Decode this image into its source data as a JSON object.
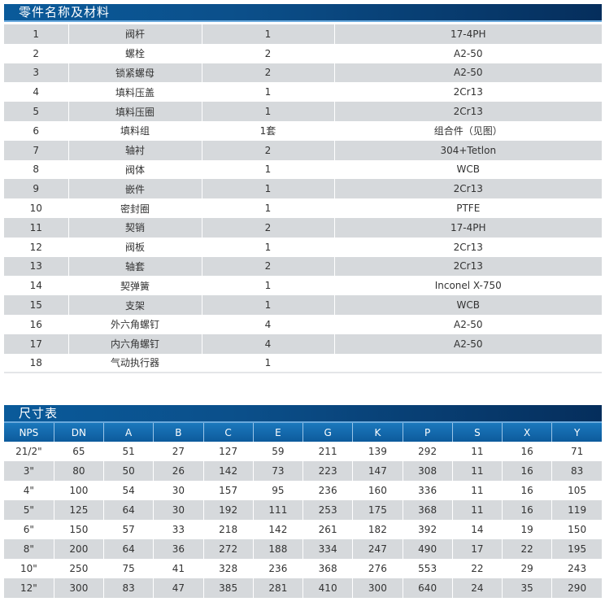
{
  "parts_section": {
    "title": "零件名称及材料",
    "rows": [
      [
        "1",
        "阀杆",
        "1",
        "17-4PH"
      ],
      [
        "2",
        "螺栓",
        "2",
        "A2-50"
      ],
      [
        "3",
        "锁紧螺母",
        "2",
        "A2-50"
      ],
      [
        "4",
        "填料压盖",
        "1",
        "2Cr13"
      ],
      [
        "5",
        "填料压圈",
        "1",
        "2Cr13"
      ],
      [
        "6",
        "填料组",
        "1套",
        "组合件（见图）"
      ],
      [
        "7",
        "轴衬",
        "2",
        "304+Tetlon"
      ],
      [
        "8",
        "阀体",
        "1",
        "WCB"
      ],
      [
        "9",
        "嵌件",
        "1",
        "2Cr13"
      ],
      [
        "10",
        "密封圈",
        "1",
        "PTFE"
      ],
      [
        "11",
        "契销",
        "2",
        "17-4PH"
      ],
      [
        "12",
        "阀板",
        "1",
        "2Cr13"
      ],
      [
        "13",
        "轴套",
        "2",
        "2Cr13"
      ],
      [
        "14",
        "契弹簧",
        "1",
        "Inconel X-750"
      ],
      [
        "15",
        "支架",
        "1",
        "WCB"
      ],
      [
        "16",
        "外六角螺钉",
        "4",
        "A2-50"
      ],
      [
        "17",
        "内六角螺钉",
        "4",
        "A2-50"
      ],
      [
        "18",
        "气动执行器",
        "1",
        ""
      ]
    ]
  },
  "dims_section": {
    "title": "尺寸表",
    "headers": [
      "NPS",
      "DN",
      "A",
      "B",
      "C",
      "E",
      "G",
      "K",
      "P",
      "S",
      "X",
      "Y"
    ],
    "rows": [
      [
        "21/2\"",
        "65",
        "51",
        "27",
        "127",
        "59",
        "211",
        "139",
        "292",
        "11",
        "16",
        "71"
      ],
      [
        "3\"",
        "80",
        "50",
        "26",
        "142",
        "73",
        "223",
        "147",
        "308",
        "11",
        "16",
        "83"
      ],
      [
        "4\"",
        "100",
        "54",
        "30",
        "157",
        "95",
        "236",
        "160",
        "336",
        "11",
        "16",
        "105"
      ],
      [
        "5\"",
        "125",
        "64",
        "30",
        "192",
        "111",
        "253",
        "175",
        "368",
        "11",
        "16",
        "119"
      ],
      [
        "6\"",
        "150",
        "57",
        "33",
        "218",
        "142",
        "261",
        "182",
        "392",
        "14",
        "19",
        "150"
      ],
      [
        "8\"",
        "200",
        "64",
        "36",
        "272",
        "188",
        "334",
        "247",
        "490",
        "17",
        "22",
        "195"
      ],
      [
        "10\"",
        "250",
        "75",
        "41",
        "328",
        "236",
        "368",
        "276",
        "553",
        "22",
        "29",
        "243"
      ],
      [
        "12\"",
        "300",
        "83",
        "47",
        "385",
        "281",
        "410",
        "300",
        "640",
        "24",
        "35",
        "290"
      ]
    ]
  }
}
